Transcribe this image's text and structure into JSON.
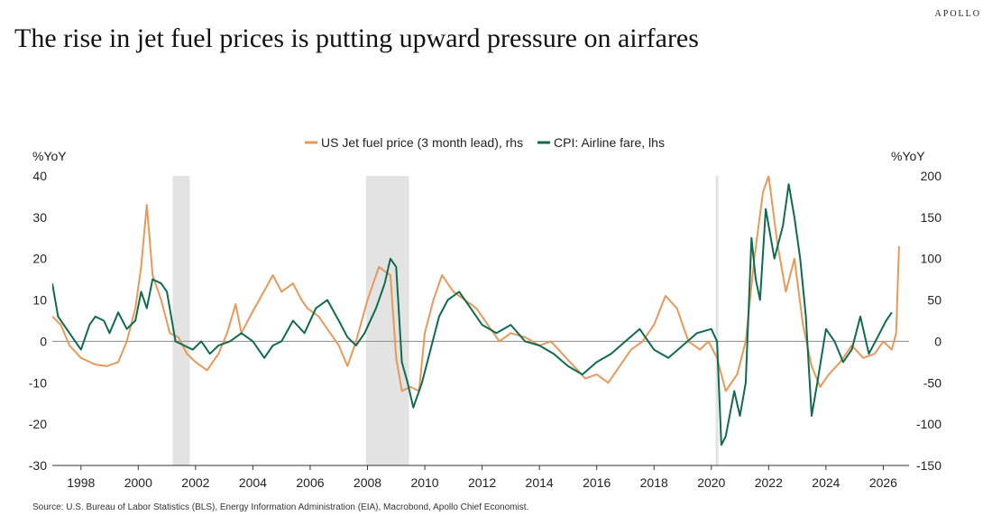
{
  "brand": "APOLLO",
  "title": "The rise in jet fuel prices is putting upward pressure on airfares",
  "source": "Source: U.S. Bureau of Labor Statistics (BLS), Energy Information Administration (EIA), Macrobond, Apollo Chief Economist.",
  "chart_data": {
    "type": "line",
    "title": "The rise in jet fuel prices is putting upward pressure on airfares",
    "left_axis": {
      "label": "%YoY",
      "ylim": [
        -30,
        40
      ],
      "ticks": [
        40,
        30,
        20,
        10,
        0,
        -10,
        -20,
        -30
      ]
    },
    "right_axis": {
      "label": "%YoY",
      "ylim": [
        -150,
        200
      ],
      "ticks": [
        200,
        150,
        100,
        50,
        0,
        -50,
        -100,
        -150
      ]
    },
    "x_axis": {
      "xlim": [
        1997,
        2026.9
      ],
      "ticks": [
        1998,
        2000,
        2002,
        2004,
        2006,
        2008,
        2010,
        2012,
        2014,
        2016,
        2018,
        2020,
        2022,
        2024,
        2026
      ]
    },
    "legend_position": "top-center",
    "grid": false,
    "zero_line": true,
    "recessions": [
      [
        2001.2,
        2001.8
      ],
      [
        2007.95,
        2009.45
      ],
      [
        2020.15,
        2020.25
      ]
    ],
    "series": [
      {
        "name": "US Jet fuel price (3 month lead), rhs",
        "axis": "right",
        "color": "#e8995a",
        "x": [
          1997,
          1997.3,
          1997.6,
          1998,
          1998.5,
          1998.9,
          1999.3,
          1999.6,
          1999.9,
          2000.1,
          2000.3,
          2000.5,
          2000.8,
          2001.1,
          2001.4,
          2001.7,
          2002,
          2002.4,
          2002.8,
          2003.1,
          2003.4,
          2003.6,
          2003.9,
          2004.3,
          2004.7,
          2005,
          2005.4,
          2005.7,
          2005.9,
          2006.3,
          2006.7,
          2007,
          2007.3,
          2007.6,
          2008,
          2008.4,
          2008.8,
          2009,
          2009.2,
          2009.5,
          2009.8,
          2010,
          2010.3,
          2010.6,
          2011,
          2011.4,
          2011.8,
          2012.2,
          2012.6,
          2013,
          2013.5,
          2014,
          2014.4,
          2014.8,
          2015.2,
          2015.6,
          2016,
          2016.4,
          2016.8,
          2017.2,
          2017.6,
          2018,
          2018.4,
          2018.8,
          2019.2,
          2019.6,
          2019.9,
          2020.2,
          2020.5,
          2020.9,
          2021.2,
          2021.5,
          2021.8,
          2022,
          2022.3,
          2022.6,
          2022.9,
          2023.2,
          2023.5,
          2023.8,
          2024.1,
          2024.5,
          2024.9,
          2025.3,
          2025.7,
          2026,
          2026.3,
          2026.45,
          2026.55
        ],
        "values": [
          30,
          20,
          -5,
          -20,
          -28,
          -30,
          -25,
          0,
          40,
          90,
          165,
          80,
          50,
          10,
          5,
          -15,
          -25,
          -35,
          -15,
          10,
          45,
          10,
          30,
          55,
          80,
          60,
          70,
          50,
          40,
          30,
          10,
          -5,
          -30,
          0,
          50,
          90,
          80,
          -20,
          -60,
          -55,
          -60,
          10,
          50,
          80,
          60,
          50,
          40,
          20,
          0,
          10,
          5,
          -5,
          0,
          -15,
          -30,
          -45,
          -40,
          -50,
          -30,
          -10,
          0,
          20,
          55,
          40,
          0,
          -10,
          0,
          -20,
          -60,
          -40,
          0,
          100,
          180,
          200,
          120,
          60,
          100,
          20,
          -30,
          -55,
          -40,
          -25,
          -5,
          -20,
          -15,
          0,
          -10,
          10,
          115
        ]
      },
      {
        "name": "CPI: Airline fare, lhs",
        "axis": "left",
        "color": "#0f6b4f",
        "x": [
          1997,
          1997.2,
          1997.5,
          1997.8,
          1998,
          1998.3,
          1998.5,
          1998.8,
          1999,
          1999.3,
          1999.6,
          1999.9,
          2000.1,
          2000.3,
          2000.5,
          2000.8,
          2001,
          2001.3,
          2001.6,
          2001.9,
          2002.2,
          2002.5,
          2002.8,
          2003.2,
          2003.6,
          2004,
          2004.4,
          2004.7,
          2005,
          2005.4,
          2005.8,
          2006.2,
          2006.6,
          2007,
          2007.3,
          2007.6,
          2007.9,
          2008.3,
          2008.6,
          2008.8,
          2009,
          2009.2,
          2009.4,
          2009.6,
          2009.9,
          2010.2,
          2010.5,
          2010.8,
          2011.2,
          2011.6,
          2012,
          2012.5,
          2013,
          2013.5,
          2014,
          2014.5,
          2015,
          2015.5,
          2016,
          2016.5,
          2017,
          2017.5,
          2018,
          2018.5,
          2019,
          2019.5,
          2020,
          2020.2,
          2020.35,
          2020.5,
          2020.8,
          2021,
          2021.2,
          2021.4,
          2021.55,
          2021.7,
          2021.9,
          2022.2,
          2022.5,
          2022.7,
          2022.9,
          2023.1,
          2023.3,
          2023.5,
          2023.7,
          2024,
          2024.3,
          2024.6,
          2024.9,
          2025.2,
          2025.5,
          2025.8,
          2026.1,
          2026.3
        ],
        "values": [
          14,
          6,
          3,
          0,
          -2,
          4,
          6,
          5,
          2,
          7,
          3,
          5,
          12,
          8,
          15,
          14,
          12,
          0,
          -1,
          -2,
          0,
          -3,
          -1,
          0,
          2,
          0,
          -4,
          -1,
          0,
          5,
          2,
          8,
          10,
          5,
          1,
          -1,
          2,
          8,
          14,
          20,
          18,
          -5,
          -10,
          -16,
          -10,
          -2,
          6,
          10,
          12,
          8,
          4,
          2,
          4,
          0,
          -1,
          -3,
          -6,
          -8,
          -5,
          -3,
          0,
          3,
          -2,
          -4,
          -1,
          2,
          3,
          0,
          -25,
          -23,
          -12,
          -18,
          -10,
          25,
          15,
          10,
          32,
          20,
          28,
          38,
          30,
          20,
          6,
          -18,
          -10,
          3,
          0,
          -5,
          -2,
          6,
          -3,
          1,
          5,
          7
        ]
      }
    ]
  }
}
